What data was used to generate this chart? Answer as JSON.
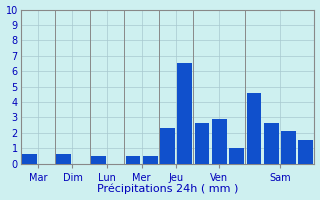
{
  "days": [
    "Mar",
    "Dim",
    "Lun",
    "Mer",
    "Jeu",
    "Ven",
    "Sam"
  ],
  "bar_groups": [
    {
      "day": "Mar",
      "bars": [
        0.6
      ]
    },
    {
      "day": "Dim",
      "bars": [
        0.6
      ]
    },
    {
      "day": "Lun",
      "bars": [
        0.5
      ]
    },
    {
      "day": "Mer",
      "bars": [
        0.5,
        0.5
      ]
    },
    {
      "day": "Jeu",
      "bars": [
        2.3,
        6.5
      ]
    },
    {
      "day": "Ven",
      "bars": [
        2.6,
        2.9,
        1.0
      ]
    },
    {
      "day": "Sam",
      "bars": [
        4.6,
        2.6,
        2.1,
        1.5
      ]
    }
  ],
  "bar_color": "#1050cc",
  "xlabel": "Précipitations 24h ( mm )",
  "ylim": [
    0,
    10
  ],
  "yticks": [
    0,
    1,
    2,
    3,
    4,
    5,
    6,
    7,
    8,
    9,
    10
  ],
  "background_color": "#cef0f0",
  "grid_color": "#a8c8d0",
  "bar_width": 0.85,
  "xlabel_color": "#0000bb",
  "tick_color": "#0000bb",
  "axis_color": "#888888",
  "separator_color": "#888888",
  "slots_per_group": [
    2,
    2,
    2,
    2,
    2,
    3,
    4
  ],
  "total_slots": 17
}
